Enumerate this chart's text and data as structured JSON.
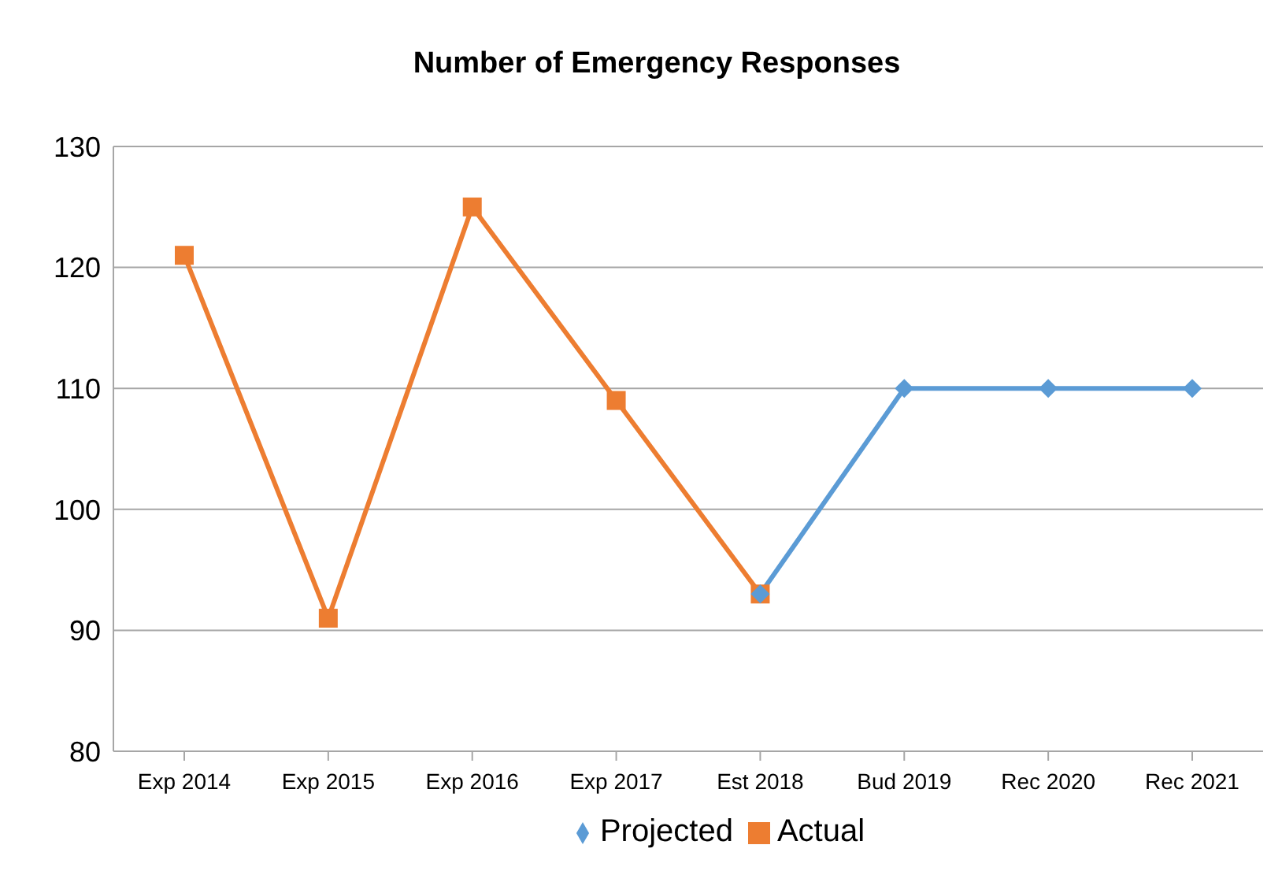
{
  "chart_data": {
    "type": "line",
    "title": "Number of Emergency Responses",
    "categories": [
      "Exp 2014",
      "Exp 2015",
      "Exp 2016",
      "Exp 2017",
      "Est 2018",
      "Bud 2019",
      "Rec 2020",
      "Rec 2021"
    ],
    "series": [
      {
        "name": "Projected",
        "color": "#5b9bd5",
        "marker": "diamond",
        "values": [
          null,
          null,
          null,
          null,
          93,
          110,
          110,
          110
        ]
      },
      {
        "name": "Actual",
        "color": "#ed7d31",
        "marker": "square",
        "values": [
          121,
          91,
          125,
          109,
          93,
          null,
          null,
          null
        ]
      }
    ],
    "ylim": [
      80,
      130
    ],
    "yticks": [
      80,
      90,
      100,
      110,
      120,
      130
    ],
    "grid": "y",
    "legend": "bottom"
  }
}
